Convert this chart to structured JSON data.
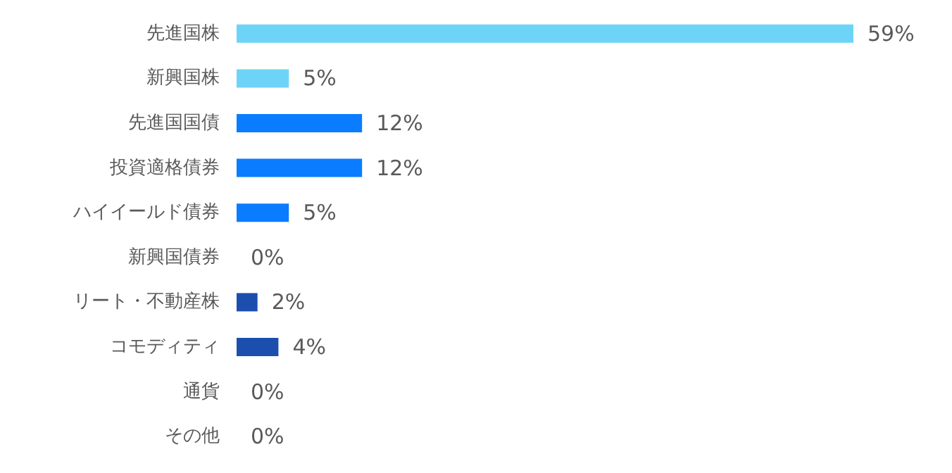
{
  "chart_data": {
    "type": "bar",
    "orientation": "horizontal",
    "categories": [
      "先進国株",
      "新興国株",
      "先進国国債",
      "投資適格債券",
      "ハイイールド債券",
      "新興国債券",
      "リート・不動産株",
      "コモディティ",
      "通貨",
      "その他"
    ],
    "values": [
      59,
      5,
      12,
      12,
      5,
      0,
      2,
      4,
      0,
      0
    ],
    "colors": [
      "#6dd4f8",
      "#6dd4f8",
      "#0a7cff",
      "#0a7cff",
      "#0a7cff",
      "#0a7cff",
      "#1c4fad",
      "#1c4fad",
      "#1c4fad",
      "#1c4fad"
    ],
    "value_labels": [
      "59%",
      "5%",
      "12%",
      "12%",
      "5%",
      "0%",
      "2%",
      "4%",
      "0%",
      "0%"
    ],
    "tick_labels": "y"
  }
}
